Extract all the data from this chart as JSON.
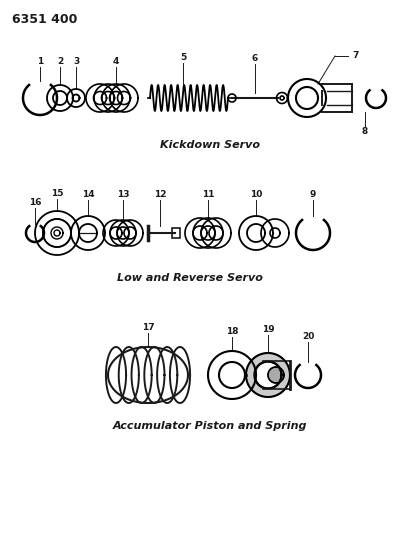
{
  "title_label": "6351 400",
  "section1_label": "Kickdown Servo",
  "section2_label": "Low and Reverse Servo",
  "section3_label": "Accumulator Piston and Spring",
  "bg_color": "#ffffff",
  "line_color": "#1a1a1a",
  "fig_width": 4.08,
  "fig_height": 5.33,
  "dpi": 100
}
